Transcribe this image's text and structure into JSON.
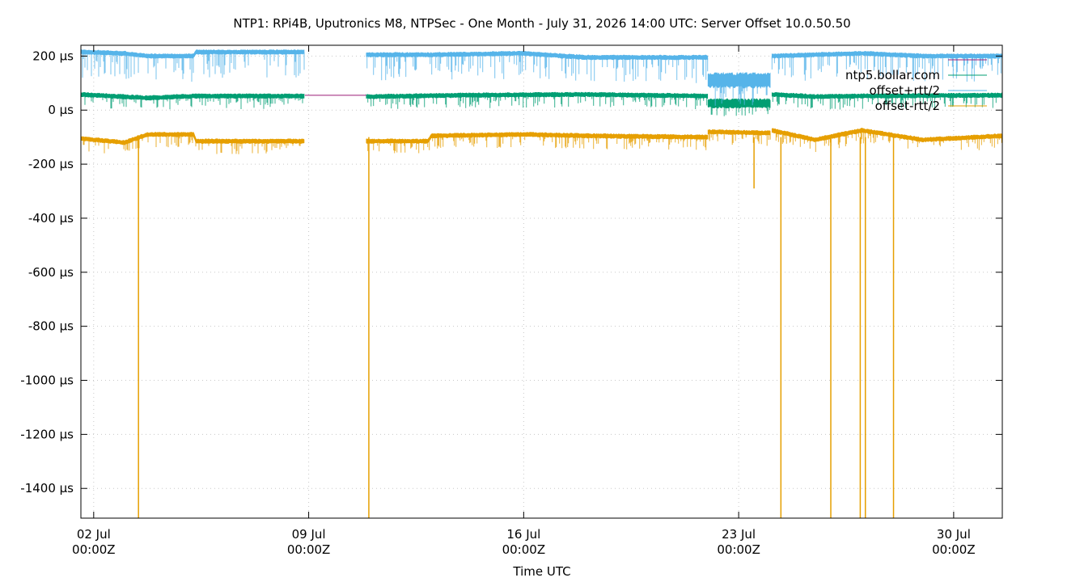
{
  "chart_data": {
    "type": "line",
    "title": "NTP1: RPi4B, Uputronics M8, NTPSec - One Month - July 31, 2026 14:00 UTC: Server Offset 10.0.50.50",
    "xlabel": "Time UTC",
    "ylabel": "",
    "xlim": [
      "2026-07-01T14:00Z",
      "2026-07-31T14:00Z"
    ],
    "ylim": [
      -1510,
      240
    ],
    "y_ticks": [
      200,
      0,
      -200,
      -400,
      -600,
      -800,
      -1000,
      -1200,
      -1400
    ],
    "y_tick_labels": [
      "200 µs",
      "0 µs",
      "-200 µs",
      "-400 µs",
      "-600 µs",
      "-800 µs",
      "-1000 µs",
      "-1200 µs",
      "-1400 µs"
    ],
    "x_ticks": [
      "2026-07-02T00:00Z",
      "2026-07-09T00:00Z",
      "2026-07-16T00:00Z",
      "2026-07-23T00:00Z",
      "2026-07-30T00:00Z"
    ],
    "x_tick_labels": [
      [
        "02 Jul",
        "00:00Z"
      ],
      [
        "09 Jul",
        "00:00Z"
      ],
      [
        "16 Jul",
        "00:00Z"
      ],
      [
        "23 Jul",
        "00:00Z"
      ],
      [
        "30 Jul",
        "00:00Z"
      ]
    ],
    "grid": true,
    "legend_position": "top-right",
    "series": [
      {
        "name": "ntp5.bollar.com",
        "color": "#009e73",
        "style": "band",
        "segments": [
          {
            "x": [
              "2026-07-01T14:00Z",
              "2026-07-03T18:00Z",
              "2026-07-05T06:00Z",
              "2026-07-08T21:00Z"
            ],
            "y": [
              58,
              45,
              52,
              52
            ]
          },
          {
            "x": [
              "2026-07-10T21:00Z",
              "2026-07-14T00:00Z",
              "2026-07-18T00:00Z",
              "2026-07-22T00:00Z"
            ],
            "y": [
              50,
              55,
              58,
              52
            ]
          },
          {
            "x": [
              "2026-07-22T00:00Z",
              "2026-07-24T01:00Z"
            ],
            "y": [
              25,
              25
            ]
          },
          {
            "x": [
              "2026-07-24T02:00Z",
              "2026-07-25T12:00Z",
              "2026-07-27T00:00Z",
              "2026-07-31T14:00Z"
            ],
            "y": [
              58,
              50,
              52,
              55
            ]
          }
        ]
      },
      {
        "name": "offset+rtt/2",
        "color": "#56b4e9",
        "style": "band",
        "segments": [
          {
            "x": [
              "2026-07-01T14:00Z",
              "2026-07-03T00:00Z",
              "2026-07-03T18:00Z",
              "2026-07-05T06:00Z",
              "2026-07-05T08:00Z",
              "2026-07-08T21:00Z"
            ],
            "y": [
              215,
              210,
              200,
              200,
              215,
              215
            ]
          },
          {
            "x": [
              "2026-07-10T21:00Z",
              "2026-07-13T00:00Z",
              "2026-07-16T00:00Z",
              "2026-07-18T00:00Z",
              "2026-07-22T00:00Z"
            ],
            "y": [
              205,
              205,
              210,
              195,
              195
            ]
          },
          {
            "x": [
              "2026-07-22T00:00Z",
              "2026-07-24T01:00Z"
            ],
            "y": [
              110,
              110
            ]
          },
          {
            "x": [
              "2026-07-24T02:00Z",
              "2026-07-25T12:00Z",
              "2026-07-27T00:00Z",
              "2026-07-29T00:00Z",
              "2026-07-31T14:00Z"
            ],
            "y": [
              200,
              205,
              210,
              200,
              200
            ]
          }
        ]
      },
      {
        "name": "offset-rtt/2",
        "color": "#e69f00",
        "style": "band",
        "segments": [
          {
            "x": [
              "2026-07-01T14:00Z",
              "2026-07-03T00:00Z",
              "2026-07-03T18:00Z",
              "2026-07-05T06:00Z",
              "2026-07-05T08:00Z",
              "2026-07-08T21:00Z"
            ],
            "y": [
              -105,
              -120,
              -90,
              -90,
              -115,
              -115
            ]
          },
          {
            "x": [
              "2026-07-10T21:00Z",
              "2026-07-12T21:00Z",
              "2026-07-13T00:00Z",
              "2026-07-16T00:00Z",
              "2026-07-18T00:00Z",
              "2026-07-22T00:00Z"
            ],
            "y": [
              -115,
              -115,
              -95,
              -90,
              -95,
              -100
            ]
          },
          {
            "x": [
              "2026-07-22T00:00Z",
              "2026-07-24T01:00Z"
            ],
            "y": [
              -80,
              -85
            ]
          },
          {
            "x": [
              "2026-07-24T02:00Z",
              "2026-07-25T12:00Z",
              "2026-07-27T00:00Z",
              "2026-07-29T00:00Z",
              "2026-07-31T14:00Z"
            ],
            "y": [
              -75,
              -110,
              -75,
              -110,
              -95
            ]
          }
        ],
        "spikes": [
          {
            "x": "2026-07-03T11:00Z",
            "y": -1510
          },
          {
            "x": "2026-07-10T23:00Z",
            "y": -1510
          },
          {
            "x": "2026-07-24T09:00Z",
            "y": -1510
          },
          {
            "x": "2026-07-26T00:00Z",
            "y": -1510
          },
          {
            "x": "2026-07-26T23:00Z",
            "y": -1510
          },
          {
            "x": "2026-07-27T03:00Z",
            "y": -1510
          },
          {
            "x": "2026-07-28T01:00Z",
            "y": -1510
          },
          {
            "x": "2026-07-23T12:00Z",
            "y": -290
          }
        ]
      },
      {
        "name": "",
        "color": "#9b1b76",
        "style": "line",
        "segments": [
          {
            "x": [
              "2026-07-08T21:00Z",
              "2026-07-10T21:00Z"
            ],
            "y": [
              55,
              55
            ]
          }
        ]
      }
    ],
    "legend_entries": [
      {
        "label": "",
        "color": "#9b1b76"
      },
      {
        "label": "ntp5.bollar.com",
        "color": "#009e73"
      },
      {
        "label": "offset+rtt/2",
        "color": "#56b4e9"
      },
      {
        "label": "offset-rtt/2",
        "color": "#e69f00"
      }
    ]
  }
}
